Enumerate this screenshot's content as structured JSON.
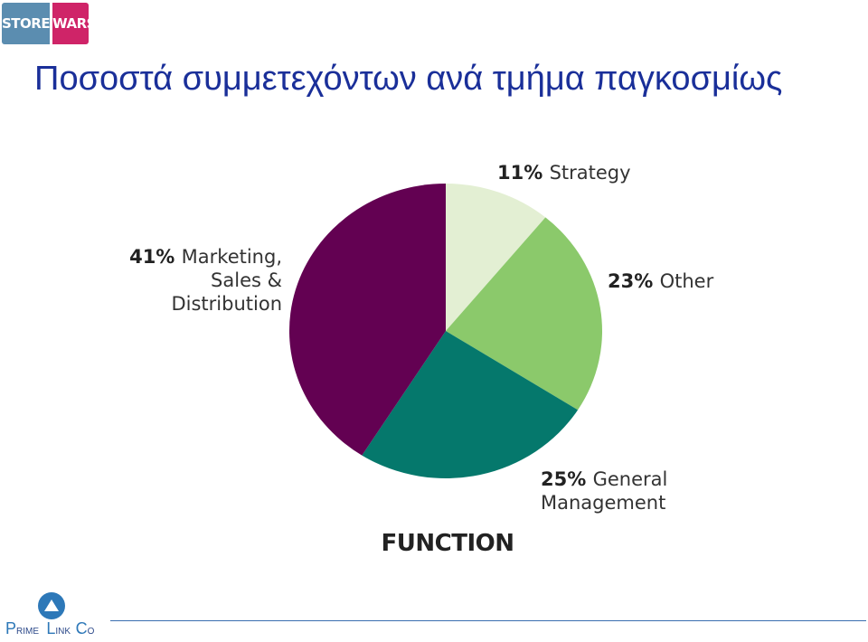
{
  "header": {
    "logo": {
      "left_text": "STORE",
      "right_text": "WARS",
      "left_color": "#5b8db0",
      "right_color": "#cf2468"
    },
    "title": "Ποσοστά συμμετεχόντων ανά τμήμα παγκοσμίως"
  },
  "chart_data": {
    "type": "pie",
    "title": "FUNCTION",
    "slices": [
      {
        "label_lines": [
          "Strategy"
        ],
        "percent_text": "11%",
        "value": 11,
        "color": "#e3efd3"
      },
      {
        "label_lines": [
          "Other"
        ],
        "percent_text": "23%",
        "value": 23,
        "color": "#8bc96b"
      },
      {
        "label_lines": [
          "General",
          "Management"
        ],
        "percent_text": "25%",
        "value": 25,
        "color": "#05786c"
      },
      {
        "label_lines": [
          "Marketing,",
          "Sales &",
          "Distribution"
        ],
        "percent_text": "41%",
        "value": 41,
        "color": "#630152"
      }
    ],
    "start": "12 o'clock",
    "direction": "clockwise",
    "legend": "none"
  },
  "footer": {
    "logo_letters": [
      "P",
      "RIME",
      "L",
      "INK",
      "C",
      "O"
    ],
    "line_color": "#3a6fb0"
  }
}
